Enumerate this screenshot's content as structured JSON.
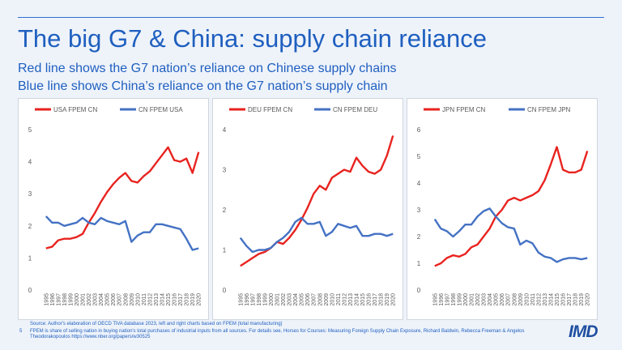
{
  "header": {
    "title": "The big G7 & China: supply chain reliance",
    "subtitles": [
      "Red line shows the G7 nation’s reliance on Chinese supply chains",
      "Blue line shows China’s reliance on the G7 nation’s supply chain"
    ]
  },
  "chart_data": [
    {
      "type": "line",
      "legend": "top",
      "categories": [
        "1995",
        "1996",
        "1997",
        "1998",
        "1999",
        "2000",
        "2001",
        "2002",
        "2003",
        "2004",
        "2005",
        "2006",
        "2007",
        "2008",
        "2009",
        "2010",
        "2011",
        "2012",
        "2013",
        "2014",
        "2015",
        "2016",
        "2017",
        "2018",
        "2019",
        "2020"
      ],
      "ylim": [
        0,
        5
      ],
      "yticks": [
        0,
        1,
        2,
        3,
        4,
        5
      ],
      "grid": false,
      "series": [
        {
          "name": "USA FPEM CN",
          "color": "#e8231f",
          "values": [
            1.3,
            1.35,
            1.55,
            1.6,
            1.6,
            1.65,
            1.75,
            2.1,
            2.4,
            2.75,
            3.05,
            3.3,
            3.5,
            3.65,
            3.4,
            3.35,
            3.55,
            3.7,
            3.95,
            4.2,
            4.45,
            4.05,
            4.0,
            4.1,
            3.65,
            4.3
          ]
        },
        {
          "name": "CN FPEM USA",
          "color": "#4472c4",
          "values": [
            2.3,
            2.1,
            2.1,
            2.0,
            2.05,
            2.1,
            2.25,
            2.1,
            2.05,
            2.25,
            2.15,
            2.1,
            2.05,
            2.15,
            1.5,
            1.7,
            1.8,
            1.8,
            2.05,
            2.05,
            2.0,
            1.95,
            1.9,
            1.6,
            1.25,
            1.3
          ]
        }
      ]
    },
    {
      "type": "line",
      "legend": "top",
      "categories": [
        "1995",
        "1996",
        "1997",
        "1998",
        "1999",
        "2000",
        "2001",
        "2002",
        "2003",
        "2004",
        "2005",
        "2006",
        "2007",
        "2008",
        "2009",
        "2010",
        "2011",
        "2012",
        "2013",
        "2014",
        "2015",
        "2016",
        "2017",
        "2018",
        "2019",
        "2020"
      ],
      "ylim": [
        0,
        4
      ],
      "yticks": [
        0,
        1,
        2,
        3,
        4
      ],
      "grid": false,
      "series": [
        {
          "name": "DEU FPEM CN",
          "color": "#e8231f",
          "values": [
            0.6,
            0.7,
            0.8,
            0.9,
            0.95,
            1.05,
            1.2,
            1.15,
            1.3,
            1.5,
            1.75,
            2.05,
            2.4,
            2.6,
            2.5,
            2.8,
            2.9,
            3.0,
            2.95,
            3.3,
            3.1,
            2.95,
            2.9,
            3.0,
            3.35,
            3.85
          ]
        },
        {
          "name": "CN FPEM DEU",
          "color": "#4472c4",
          "values": [
            1.3,
            1.1,
            0.95,
            1.0,
            1.0,
            1.05,
            1.2,
            1.3,
            1.45,
            1.7,
            1.8,
            1.65,
            1.65,
            1.7,
            1.35,
            1.45,
            1.65,
            1.6,
            1.55,
            1.6,
            1.35,
            1.35,
            1.4,
            1.4,
            1.35,
            1.4
          ]
        }
      ]
    },
    {
      "type": "line",
      "legend": "top",
      "categories": [
        "1995",
        "1996",
        "1997",
        "1998",
        "1999",
        "2000",
        "2001",
        "2002",
        "2003",
        "2004",
        "2005",
        "2006",
        "2007",
        "2008",
        "2009",
        "2010",
        "2011",
        "2012",
        "2013",
        "2014",
        "2015",
        "2016",
        "2017",
        "2018",
        "2019",
        "2020"
      ],
      "ylim": [
        0,
        6
      ],
      "yticks": [
        0,
        1,
        2,
        3,
        4,
        5,
        6
      ],
      "grid": false,
      "series": [
        {
          "name": "JPN FPEM CN",
          "color": "#e8231f",
          "values": [
            0.9,
            1.0,
            1.2,
            1.3,
            1.25,
            1.35,
            1.6,
            1.7,
            2.0,
            2.3,
            2.75,
            3.0,
            3.35,
            3.45,
            3.35,
            3.45,
            3.55,
            3.7,
            4.1,
            4.7,
            5.35,
            4.5,
            4.4,
            4.4,
            4.5,
            5.2
          ]
        },
        {
          "name": "CN FPEM JPN",
          "color": "#4472c4",
          "values": [
            2.65,
            2.3,
            2.2,
            2.0,
            2.2,
            2.45,
            2.45,
            2.75,
            2.95,
            3.05,
            2.75,
            2.5,
            2.35,
            2.3,
            1.7,
            1.85,
            1.75,
            1.4,
            1.25,
            1.2,
            1.05,
            1.15,
            1.2,
            1.2,
            1.15,
            1.2
          ]
        }
      ]
    }
  ],
  "footer": {
    "source": "Source: Author's elaboration of OECD TiVA database 2023, left and right charts based on FPEM (total manufacturing)",
    "note": "FPEM is share of selling nation in buying nation's total purchases of industrial inputs from all sources. For details see, Horses for Courses: Measuring Foreign Supply Chain Exposure, Richard Baldwin, Rebecca Freeman & Angelos Theodorakopoulos https://www.nber.org/papers/w30525",
    "page_number": "5",
    "logo": "IMD"
  }
}
